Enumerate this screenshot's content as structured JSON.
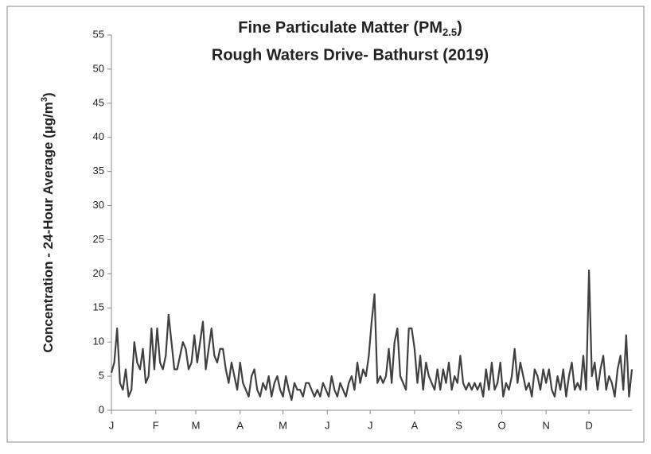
{
  "chart_data": {
    "type": "line",
    "title": [
      "Fine Particulate Matter (PM",
      "2.5",
      ")"
    ],
    "subtitle": "Rough Waters Drive- Bathurst (2019)",
    "y_label": [
      "Concentration - 24-Hour Average (µg/m",
      "3",
      ")"
    ],
    "xlim": [
      1,
      365
    ],
    "xticks": [
      {
        "value": 1,
        "label": "J"
      },
      {
        "value": 32,
        "label": "F"
      },
      {
        "value": 60,
        "label": "M"
      },
      {
        "value": 91,
        "label": "A"
      },
      {
        "value": 121,
        "label": "M"
      },
      {
        "value": 152,
        "label": "J"
      },
      {
        "value": 182,
        "label": "J"
      },
      {
        "value": 213,
        "label": "A"
      },
      {
        "value": 244,
        "label": "S"
      },
      {
        "value": 274,
        "label": "O"
      },
      {
        "value": 305,
        "label": "N"
      },
      {
        "value": 335,
        "label": "D"
      }
    ],
    "ylim": [
      0,
      55
    ],
    "yticks": [
      0,
      5,
      10,
      15,
      20,
      25,
      30,
      35,
      40,
      45,
      50,
      55
    ],
    "x": [
      1,
      3,
      5,
      7,
      9,
      11,
      13,
      15,
      17,
      19,
      21,
      23,
      25,
      27,
      29,
      31,
      33,
      35,
      37,
      39,
      41,
      43,
      45,
      47,
      49,
      51,
      53,
      55,
      57,
      59,
      61,
      63,
      65,
      67,
      69,
      71,
      73,
      75,
      77,
      79,
      81,
      83,
      85,
      87,
      89,
      91,
      93,
      95,
      97,
      99,
      101,
      103,
      105,
      107,
      109,
      111,
      113,
      115,
      117,
      119,
      121,
      123,
      125,
      127,
      129,
      131,
      133,
      135,
      137,
      139,
      141,
      143,
      145,
      147,
      149,
      151,
      153,
      155,
      157,
      159,
      161,
      163,
      165,
      167,
      169,
      171,
      173,
      175,
      177,
      179,
      181,
      183,
      185,
      187,
      189,
      191,
      193,
      195,
      197,
      199,
      201,
      203,
      205,
      207,
      209,
      211,
      213,
      215,
      217,
      219,
      221,
      223,
      225,
      227,
      229,
      231,
      233,
      235,
      237,
      239,
      241,
      243,
      245,
      247,
      249,
      251,
      253,
      255,
      257,
      259,
      261,
      263,
      265,
      267,
      269,
      271,
      273,
      275,
      277,
      279,
      281,
      283,
      285,
      287,
      289,
      291,
      293,
      295,
      297,
      299,
      301,
      303,
      305,
      307,
      309,
      311,
      313,
      315,
      317,
      319,
      321,
      323,
      325,
      327,
      329,
      331,
      333,
      335,
      337,
      339,
      341,
      343,
      345,
      347,
      349,
      351,
      353,
      355,
      357,
      359,
      361,
      363,
      365
    ],
    "series": [
      {
        "color": "#404040",
        "values": [
          5.5,
          7,
          12,
          4,
          3,
          6,
          2,
          3,
          10,
          7,
          6,
          9,
          4,
          5,
          12,
          6,
          12,
          7,
          6,
          8,
          14,
          10,
          6,
          6,
          8,
          10,
          9,
          6,
          7,
          11,
          7,
          10,
          13,
          6,
          9,
          12,
          8,
          7,
          9,
          9,
          6,
          4,
          7,
          5,
          3,
          7,
          4,
          3,
          2,
          5,
          6,
          3,
          2,
          4,
          3,
          5,
          2,
          4,
          5,
          3,
          2,
          5,
          3,
          1.5,
          4,
          3,
          3,
          2,
          4,
          4,
          3,
          2,
          3,
          2,
          4,
          3,
          2,
          5,
          3,
          2,
          4,
          3,
          2,
          4,
          5,
          3,
          7,
          4,
          6,
          5,
          8,
          13,
          17,
          4,
          5,
          4,
          5,
          9,
          4,
          10,
          12,
          5,
          4,
          3,
          12,
          12,
          9,
          4,
          8,
          3,
          7,
          5,
          4,
          3,
          6,
          3,
          6,
          4,
          7,
          3,
          5,
          4,
          8,
          4,
          3,
          4,
          3,
          4,
          3,
          4,
          2,
          6,
          3,
          7,
          3,
          4,
          7,
          2,
          4,
          3,
          5,
          9,
          4,
          7,
          5,
          3,
          4,
          2,
          6,
          5,
          3,
          6,
          4,
          6,
          3,
          2,
          5,
          3,
          6,
          2,
          5,
          7,
          3,
          4,
          3,
          8,
          3,
          20.5,
          5,
          7,
          3,
          6,
          8,
          3,
          5,
          4,
          2,
          6,
          8,
          3,
          11,
          2,
          6
        ]
      }
    ]
  }
}
